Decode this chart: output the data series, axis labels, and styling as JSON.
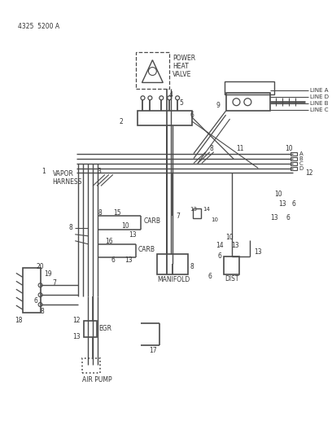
{
  "bg_color": "#ffffff",
  "line_color": "#4a4a4a",
  "text_color": "#333333",
  "fig_width": 4.08,
  "fig_height": 5.33,
  "dpi": 100,
  "part_num": "4325  5200 A",
  "labels": {
    "power_heat_valve": "POWER\nHEAT\nVALVE",
    "vapor_harness": "VAPOR\nHARNESS",
    "carb1": "CARB",
    "carb2": "CARB",
    "manifold": "MANIFOLD",
    "dist": "DIST",
    "egr": "EGR",
    "air_pump": "AIR PUMP",
    "line_a": "LINE A",
    "line_b": "LINE B",
    "line_c": "LINE C",
    "line_d": "LINE D"
  }
}
